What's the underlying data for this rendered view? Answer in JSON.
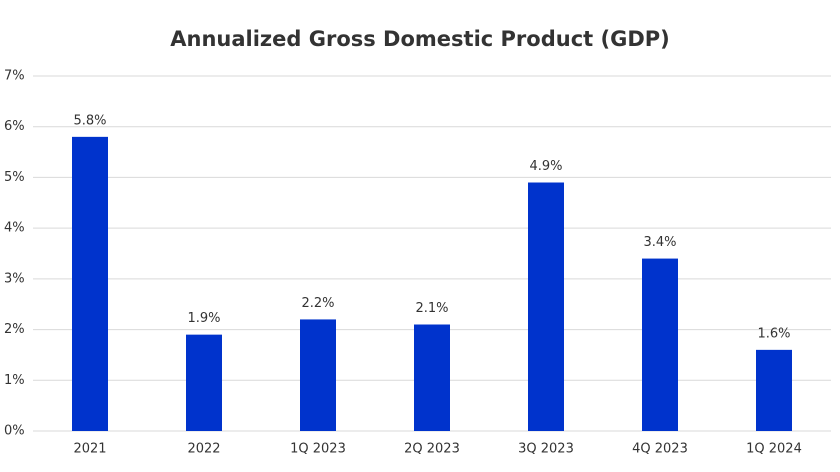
{
  "chart_data": {
    "type": "bar",
    "title": "Annualized Gross Domestic Product (GDP)",
    "categories": [
      "2021",
      "2022",
      "1Q 2023",
      "2Q 2023",
      "3Q 2023",
      "4Q 2023",
      "1Q 2024"
    ],
    "values": [
      5.8,
      1.9,
      2.2,
      2.1,
      4.9,
      3.4,
      1.6
    ],
    "value_labels": [
      "5.8%",
      "1.9%",
      "2.2%",
      "2.1%",
      "4.9%",
      "3.4%",
      "1.6%"
    ],
    "color": "#0033cc",
    "ylim": [
      0,
      7
    ],
    "yticks": [
      {
        "value": 0,
        "label": "0%"
      },
      {
        "value": 1,
        "label": "1%"
      },
      {
        "value": 2,
        "label": "2%"
      },
      {
        "value": 3,
        "label": "3%"
      },
      {
        "value": 4,
        "label": "4%"
      },
      {
        "value": 5,
        "label": "5%"
      },
      {
        "value": 6,
        "label": "6%"
      },
      {
        "value": 7,
        "label": "7%"
      }
    ],
    "grid": true
  }
}
